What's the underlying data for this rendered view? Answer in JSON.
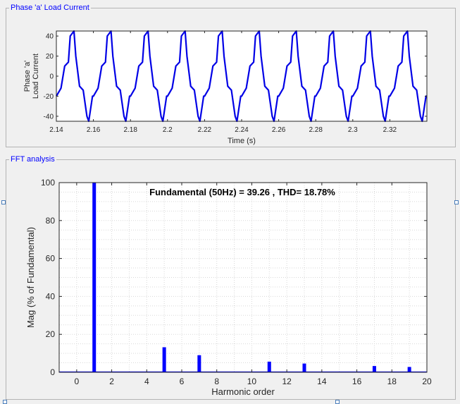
{
  "panels": {
    "top": {
      "title": "Phase 'a' Load Current"
    },
    "bottom": {
      "title": "FFT analysis"
    }
  },
  "colors": {
    "trace": "#0000e6",
    "bar": "#0000ff",
    "panel_title": "#0000ff",
    "grid": "#d8d8d8"
  },
  "chart_data": [
    {
      "type": "line",
      "title": "",
      "xlabel": "Time (s)",
      "ylabel_lines": [
        "Phase 'a'",
        "Load Current"
      ],
      "xlim": [
        2.14,
        2.34
      ],
      "ylim": [
        -45,
        45
      ],
      "xticks": [
        2.14,
        2.16,
        2.18,
        2.2,
        2.22,
        2.24,
        2.26,
        2.28,
        2.3,
        2.32
      ],
      "xtick_labels": [
        "2.14",
        "2.16",
        "2.18",
        "2.2",
        "2.22",
        "2.24",
        "2.26",
        "2.28",
        "2.3",
        "2.32"
      ],
      "yticks": [
        -40,
        -20,
        0,
        20,
        40
      ],
      "ytick_labels": [
        "-40",
        "-20",
        "0",
        "20",
        "40"
      ],
      "grid": false,
      "series": [
        {
          "period": 0.02,
          "phase_t": [
            0.0,
            0.0025,
            0.0045,
            0.0065,
            0.0075,
            0.0095,
            0.0105,
            0.0125,
            0.0145,
            0.0165,
            0.0175,
            0.0195,
            0.02
          ],
          "phase_y": [
            -20,
            -12,
            10,
            14,
            40,
            45,
            20,
            -10,
            -14,
            -40,
            -45,
            -20,
            -20
          ],
          "x_start": 2.1399,
          "x_end": 2.3401
        }
      ]
    },
    {
      "type": "bar",
      "title": "Fundamental (50Hz) = 39.26 , THD= 18.78%",
      "xlabel": "Harmonic order",
      "ylabel": "Mag (% of Fundamental)",
      "xlim": [
        -1,
        20
      ],
      "ylim": [
        0,
        100
      ],
      "xticks": [
        0,
        2,
        4,
        6,
        8,
        10,
        12,
        14,
        16,
        18,
        20
      ],
      "xtick_labels": [
        "0",
        "2",
        "4",
        "6",
        "8",
        "10",
        "12",
        "14",
        "16",
        "18",
        "20"
      ],
      "yticks": [
        0,
        20,
        40,
        60,
        80,
        100
      ],
      "ytick_labels": [
        "0",
        "20",
        "40",
        "60",
        "80",
        "100"
      ],
      "grid": true,
      "x": [
        1,
        5,
        7,
        11,
        13,
        17,
        19
      ],
      "values": [
        100,
        13.2,
        9.0,
        5.6,
        4.6,
        3.3,
        2.8
      ]
    }
  ]
}
